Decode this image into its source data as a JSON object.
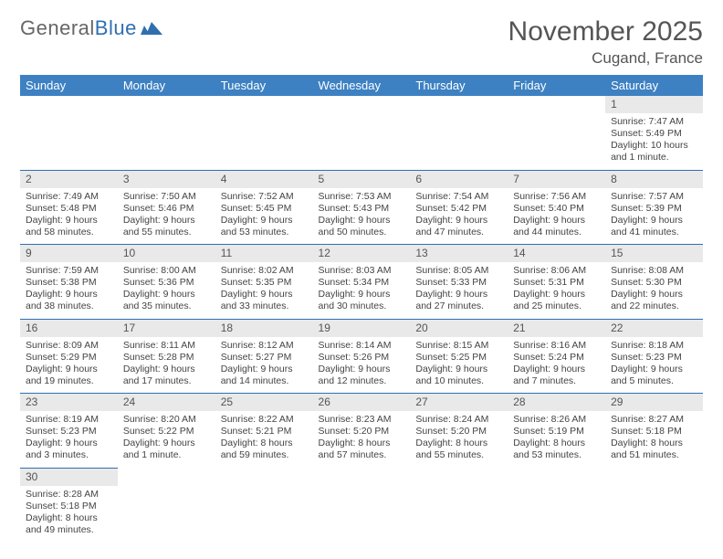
{
  "logo": {
    "text_a": "General",
    "text_b": "Blue"
  },
  "title": "November 2025",
  "location": "Cugand, France",
  "colors": {
    "header_bg": "#3d81c2",
    "header_fg": "#ffffff",
    "daynum_bg": "#e9e9e9",
    "row_divider": "#2f6fb0",
    "text": "#444444",
    "title_text": "#555555"
  },
  "weekdays": [
    "Sunday",
    "Monday",
    "Tuesday",
    "Wednesday",
    "Thursday",
    "Friday",
    "Saturday"
  ],
  "weeks": [
    [
      null,
      null,
      null,
      null,
      null,
      null,
      {
        "n": "1",
        "sr": "Sunrise: 7:47 AM",
        "ss": "Sunset: 5:49 PM",
        "dl1": "Daylight: 10 hours",
        "dl2": "and 1 minute."
      }
    ],
    [
      {
        "n": "2",
        "sr": "Sunrise: 7:49 AM",
        "ss": "Sunset: 5:48 PM",
        "dl1": "Daylight: 9 hours",
        "dl2": "and 58 minutes."
      },
      {
        "n": "3",
        "sr": "Sunrise: 7:50 AM",
        "ss": "Sunset: 5:46 PM",
        "dl1": "Daylight: 9 hours",
        "dl2": "and 55 minutes."
      },
      {
        "n": "4",
        "sr": "Sunrise: 7:52 AM",
        "ss": "Sunset: 5:45 PM",
        "dl1": "Daylight: 9 hours",
        "dl2": "and 53 minutes."
      },
      {
        "n": "5",
        "sr": "Sunrise: 7:53 AM",
        "ss": "Sunset: 5:43 PM",
        "dl1": "Daylight: 9 hours",
        "dl2": "and 50 minutes."
      },
      {
        "n": "6",
        "sr": "Sunrise: 7:54 AM",
        "ss": "Sunset: 5:42 PM",
        "dl1": "Daylight: 9 hours",
        "dl2": "and 47 minutes."
      },
      {
        "n": "7",
        "sr": "Sunrise: 7:56 AM",
        "ss": "Sunset: 5:40 PM",
        "dl1": "Daylight: 9 hours",
        "dl2": "and 44 minutes."
      },
      {
        "n": "8",
        "sr": "Sunrise: 7:57 AM",
        "ss": "Sunset: 5:39 PM",
        "dl1": "Daylight: 9 hours",
        "dl2": "and 41 minutes."
      }
    ],
    [
      {
        "n": "9",
        "sr": "Sunrise: 7:59 AM",
        "ss": "Sunset: 5:38 PM",
        "dl1": "Daylight: 9 hours",
        "dl2": "and 38 minutes."
      },
      {
        "n": "10",
        "sr": "Sunrise: 8:00 AM",
        "ss": "Sunset: 5:36 PM",
        "dl1": "Daylight: 9 hours",
        "dl2": "and 35 minutes."
      },
      {
        "n": "11",
        "sr": "Sunrise: 8:02 AM",
        "ss": "Sunset: 5:35 PM",
        "dl1": "Daylight: 9 hours",
        "dl2": "and 33 minutes."
      },
      {
        "n": "12",
        "sr": "Sunrise: 8:03 AM",
        "ss": "Sunset: 5:34 PM",
        "dl1": "Daylight: 9 hours",
        "dl2": "and 30 minutes."
      },
      {
        "n": "13",
        "sr": "Sunrise: 8:05 AM",
        "ss": "Sunset: 5:33 PM",
        "dl1": "Daylight: 9 hours",
        "dl2": "and 27 minutes."
      },
      {
        "n": "14",
        "sr": "Sunrise: 8:06 AM",
        "ss": "Sunset: 5:31 PM",
        "dl1": "Daylight: 9 hours",
        "dl2": "and 25 minutes."
      },
      {
        "n": "15",
        "sr": "Sunrise: 8:08 AM",
        "ss": "Sunset: 5:30 PM",
        "dl1": "Daylight: 9 hours",
        "dl2": "and 22 minutes."
      }
    ],
    [
      {
        "n": "16",
        "sr": "Sunrise: 8:09 AM",
        "ss": "Sunset: 5:29 PM",
        "dl1": "Daylight: 9 hours",
        "dl2": "and 19 minutes."
      },
      {
        "n": "17",
        "sr": "Sunrise: 8:11 AM",
        "ss": "Sunset: 5:28 PM",
        "dl1": "Daylight: 9 hours",
        "dl2": "and 17 minutes."
      },
      {
        "n": "18",
        "sr": "Sunrise: 8:12 AM",
        "ss": "Sunset: 5:27 PM",
        "dl1": "Daylight: 9 hours",
        "dl2": "and 14 minutes."
      },
      {
        "n": "19",
        "sr": "Sunrise: 8:14 AM",
        "ss": "Sunset: 5:26 PM",
        "dl1": "Daylight: 9 hours",
        "dl2": "and 12 minutes."
      },
      {
        "n": "20",
        "sr": "Sunrise: 8:15 AM",
        "ss": "Sunset: 5:25 PM",
        "dl1": "Daylight: 9 hours",
        "dl2": "and 10 minutes."
      },
      {
        "n": "21",
        "sr": "Sunrise: 8:16 AM",
        "ss": "Sunset: 5:24 PM",
        "dl1": "Daylight: 9 hours",
        "dl2": "and 7 minutes."
      },
      {
        "n": "22",
        "sr": "Sunrise: 8:18 AM",
        "ss": "Sunset: 5:23 PM",
        "dl1": "Daylight: 9 hours",
        "dl2": "and 5 minutes."
      }
    ],
    [
      {
        "n": "23",
        "sr": "Sunrise: 8:19 AM",
        "ss": "Sunset: 5:23 PM",
        "dl1": "Daylight: 9 hours",
        "dl2": "and 3 minutes."
      },
      {
        "n": "24",
        "sr": "Sunrise: 8:20 AM",
        "ss": "Sunset: 5:22 PM",
        "dl1": "Daylight: 9 hours",
        "dl2": "and 1 minute."
      },
      {
        "n": "25",
        "sr": "Sunrise: 8:22 AM",
        "ss": "Sunset: 5:21 PM",
        "dl1": "Daylight: 8 hours",
        "dl2": "and 59 minutes."
      },
      {
        "n": "26",
        "sr": "Sunrise: 8:23 AM",
        "ss": "Sunset: 5:20 PM",
        "dl1": "Daylight: 8 hours",
        "dl2": "and 57 minutes."
      },
      {
        "n": "27",
        "sr": "Sunrise: 8:24 AM",
        "ss": "Sunset: 5:20 PM",
        "dl1": "Daylight: 8 hours",
        "dl2": "and 55 minutes."
      },
      {
        "n": "28",
        "sr": "Sunrise: 8:26 AM",
        "ss": "Sunset: 5:19 PM",
        "dl1": "Daylight: 8 hours",
        "dl2": "and 53 minutes."
      },
      {
        "n": "29",
        "sr": "Sunrise: 8:27 AM",
        "ss": "Sunset: 5:18 PM",
        "dl1": "Daylight: 8 hours",
        "dl2": "and 51 minutes."
      }
    ],
    [
      {
        "n": "30",
        "sr": "Sunrise: 8:28 AM",
        "ss": "Sunset: 5:18 PM",
        "dl1": "Daylight: 8 hours",
        "dl2": "and 49 minutes."
      },
      null,
      null,
      null,
      null,
      null,
      null
    ]
  ]
}
